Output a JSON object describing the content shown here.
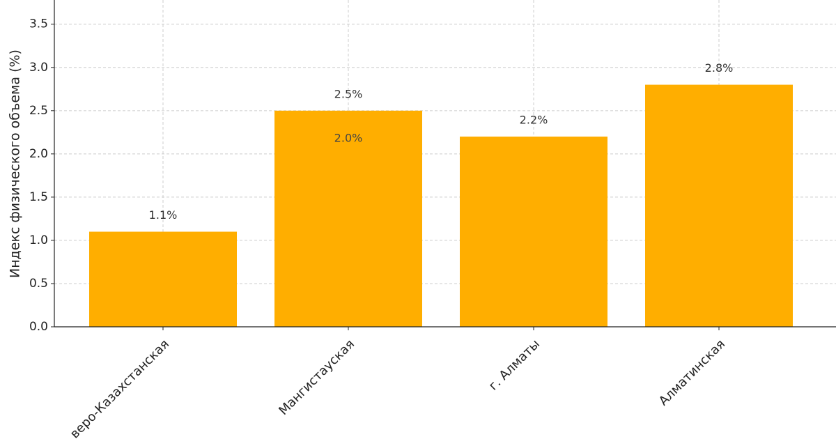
{
  "chart_data": {
    "type": "bar",
    "y_label": "Индекс физического объема (%)",
    "categories": [
      "веро-Казахстанская",
      "Мангистауская",
      "г. Алматы",
      "Алматинская"
    ],
    "values": [
      1.1,
      2.5,
      2.2,
      2.8
    ],
    "value_labels": [
      "1.1%",
      "2.5%",
      "2.2%",
      "2.8%"
    ],
    "color": "#ffae00",
    "annotations": [
      {
        "text": "2.0%",
        "category": "Мангистауская",
        "value": 2.0
      }
    ],
    "ylim": [
      0,
      3.78
    ],
    "yticks": [
      0.0,
      0.5,
      1.0,
      1.5,
      2.0,
      2.5,
      3.0,
      3.5
    ],
    "grid": true
  }
}
